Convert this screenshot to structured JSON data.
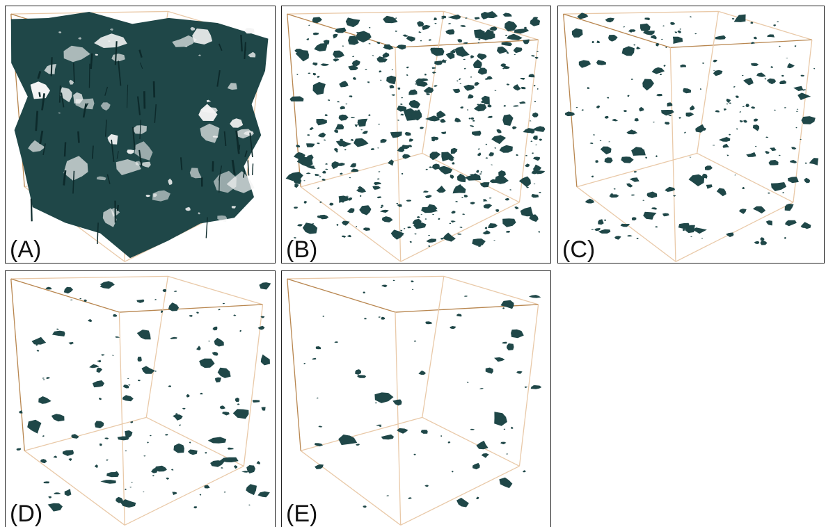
{
  "colors": {
    "blob": "#1f4748",
    "frame": "#e9c9a8",
    "frame_dark": "#b8864f",
    "panel_border": "#222222"
  },
  "panels": [
    {
      "label": "(A)",
      "density": "dense"
    },
    {
      "label": "(B)",
      "density": "high"
    },
    {
      "label": "(C)",
      "density": "medium"
    },
    {
      "label": "(D)",
      "density": "low"
    },
    {
      "label": "(E)",
      "density": "sparse"
    }
  ]
}
